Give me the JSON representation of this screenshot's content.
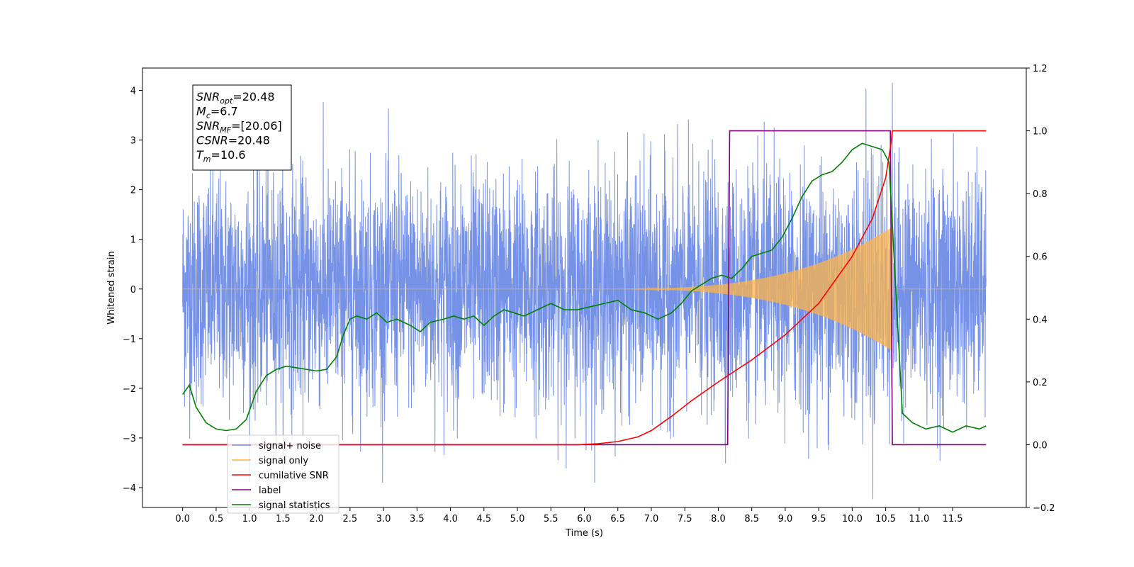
{
  "chart_data": {
    "type": "line",
    "xlabel": "Time (s)",
    "ylabel_left": "Whitened strain",
    "ylabel_right": "",
    "xlim": [
      -0.6,
      12.6
    ],
    "ylim_left": [
      -4.4,
      4.45
    ],
    "ylim_right": [
      -0.2,
      1.2
    ],
    "x_ticks": [
      "0.0",
      "0.5",
      "1.0",
      "1.5",
      "2.0",
      "2.5",
      "3.0",
      "3.5",
      "4.0",
      "4.5",
      "5.0",
      "5.5",
      "6.0",
      "6.5",
      "7.0",
      "7.5",
      "8.0",
      "8.5",
      "9.0",
      "9.5",
      "10.0",
      "10.5",
      "11.0",
      "11.5"
    ],
    "y_ticks_left": [
      "4",
      "3",
      "2",
      "1",
      "0",
      "−1",
      "−2",
      "−3",
      "−4"
    ],
    "y_ticks_right": [
      "1.2",
      "1.0",
      "0.8",
      "0.6",
      "0.4",
      "0.2",
      "0.0",
      "−0.2"
    ],
    "grid": false,
    "legend_position": "lower-left",
    "series": [
      {
        "name": "signal+ noise",
        "axis": "left",
        "color": "#6f8ce6",
        "description": "dense whitened noise, roughly within ±3, spikes up to about ±4"
      },
      {
        "name": "signal only",
        "axis": "left",
        "color": "#ffb347",
        "description": "chirp with envelope growing from 0 at ~6.0 s to ±1.25 at 10.6 s, then ends"
      },
      {
        "name": "cumilative SNR",
        "axis": "right",
        "color": "#ff0000",
        "x": [
          0.0,
          5.9,
          6.2,
          6.5,
          6.8,
          7.0,
          7.3,
          7.6,
          8.0,
          8.5,
          9.0,
          9.5,
          10.0,
          10.3,
          10.5,
          10.58,
          10.6,
          12.0
        ],
        "y": [
          0.0,
          0.0,
          0.003,
          0.01,
          0.025,
          0.045,
          0.09,
          0.14,
          0.2,
          0.27,
          0.35,
          0.45,
          0.6,
          0.72,
          0.85,
          0.96,
          1.0,
          1.0
        ]
      },
      {
        "name": "label",
        "axis": "right",
        "color": "#800080",
        "x": [
          0.0,
          8.14,
          8.17,
          10.57,
          10.6,
          12.0
        ],
        "y": [
          0.0,
          0.0,
          1.0,
          1.0,
          0.0,
          0.0
        ]
      },
      {
        "name": "signal statistics",
        "axis": "right",
        "color": "#008000",
        "x": [
          0.0,
          0.1,
          0.2,
          0.35,
          0.5,
          0.65,
          0.8,
          0.95,
          1.1,
          1.25,
          1.4,
          1.55,
          1.7,
          1.85,
          2.0,
          2.15,
          2.3,
          2.4,
          2.5,
          2.6,
          2.75,
          2.9,
          3.05,
          3.2,
          3.4,
          3.55,
          3.7,
          3.9,
          4.05,
          4.2,
          4.35,
          4.5,
          4.65,
          4.8,
          4.95,
          5.1,
          5.3,
          5.5,
          5.7,
          5.9,
          6.1,
          6.3,
          6.5,
          6.7,
          6.9,
          7.1,
          7.3,
          7.45,
          7.6,
          7.75,
          7.9,
          8.05,
          8.2,
          8.35,
          8.5,
          8.65,
          8.8,
          8.95,
          9.1,
          9.25,
          9.4,
          9.55,
          9.7,
          9.85,
          10.0,
          10.15,
          10.3,
          10.45,
          10.55,
          10.65,
          10.75,
          10.9,
          11.1,
          11.3,
          11.5,
          11.7,
          11.9,
          12.0
        ],
        "y": [
          0.16,
          0.19,
          0.12,
          0.07,
          0.05,
          0.045,
          0.05,
          0.08,
          0.17,
          0.22,
          0.24,
          0.25,
          0.245,
          0.24,
          0.235,
          0.24,
          0.28,
          0.35,
          0.4,
          0.41,
          0.4,
          0.42,
          0.39,
          0.4,
          0.38,
          0.36,
          0.39,
          0.4,
          0.41,
          0.4,
          0.41,
          0.38,
          0.41,
          0.43,
          0.42,
          0.41,
          0.43,
          0.45,
          0.43,
          0.43,
          0.44,
          0.45,
          0.46,
          0.43,
          0.42,
          0.4,
          0.42,
          0.45,
          0.49,
          0.51,
          0.53,
          0.54,
          0.53,
          0.56,
          0.6,
          0.61,
          0.62,
          0.66,
          0.72,
          0.79,
          0.84,
          0.86,
          0.87,
          0.9,
          0.94,
          0.96,
          0.95,
          0.94,
          0.9,
          0.5,
          0.1,
          0.07,
          0.05,
          0.06,
          0.04,
          0.06,
          0.05,
          0.06
        ]
      }
    ],
    "annotation": {
      "lines": [
        {
          "main": "SNR",
          "sub": "opt",
          "rest": "=20.48"
        },
        {
          "main": "M",
          "sub": "c",
          "rest": "=6.7"
        },
        {
          "main": "SNR",
          "sub": "MF",
          "rest": "=[20.06]"
        },
        {
          "main": "CSNR",
          "sub": "",
          "rest": "=20.48"
        },
        {
          "main": "T",
          "sub": "m",
          "rest": "=10.6"
        }
      ]
    },
    "legend_entries": [
      {
        "label": "signal+ noise",
        "color": "#6f8ce6"
      },
      {
        "label": "signal only",
        "color": "#ffb347"
      },
      {
        "label": "cumilative SNR",
        "color": "#ff0000"
      },
      {
        "label": "label",
        "color": "#800080"
      },
      {
        "label": "signal statistics",
        "color": "#008000"
      }
    ]
  }
}
